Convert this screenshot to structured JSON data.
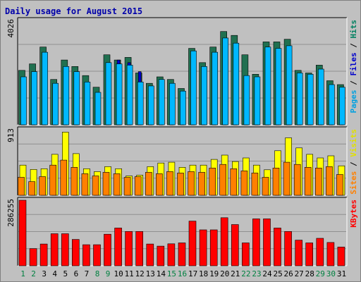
{
  "chart_data": {
    "type": "bar",
    "title": "Daily usage for August 2015",
    "categories": [
      "1",
      "2",
      "3",
      "4",
      "5",
      "6",
      "7",
      "8",
      "9",
      "10",
      "11",
      "12",
      "13",
      "14",
      "15",
      "16",
      "17",
      "18",
      "19",
      "20",
      "21",
      "22",
      "23",
      "24",
      "25",
      "26",
      "27",
      "28",
      "29",
      "30",
      "31"
    ],
    "weekend_days": [
      "1",
      "2",
      "8",
      "9",
      "15",
      "16",
      "22",
      "23",
      "29",
      "30"
    ],
    "panels": [
      {
        "name": "hits-files-pages",
        "max_label": "4026",
        "ymax": 4026,
        "side_labels": [
          {
            "text": "Pages",
            "color": "#00a0e0"
          },
          {
            "text": " / ",
            "color": "#000000"
          },
          {
            "text": "Files",
            "color": "#0000cc"
          },
          {
            "text": " / ",
            "color": "#000000"
          },
          {
            "text": "Hits",
            "color": "#008060"
          }
        ],
        "series": [
          {
            "name": "Hits",
            "color": "#207050",
            "values": [
              2100,
              2350,
              3000,
              1750,
              2500,
              2250,
              1900,
              1450,
              2700,
              2500,
              2600,
              2000,
              1600,
              1850,
              1750,
              1400,
              2950,
              2400,
              3000,
              3600,
              3450,
              2700,
              1950,
              3200,
              3200,
              3300,
              2100,
              2000,
              2300,
              1700,
              1550
            ]
          },
          {
            "name": "Files",
            "color": "#0000cc",
            "values": [
              1500,
              1650,
              1800,
              1300,
              1600,
              1500,
              1250,
              1000,
              1750,
              2500,
              2400,
              2050,
              1150,
              1300,
              1300,
              1050,
              2250,
              1750,
              2250,
              2800,
              2600,
              1750,
              1450,
              2400,
              2350,
              2650,
              1550,
              1500,
              1600,
              1250,
              1200
            ]
          },
          {
            "name": "Pages",
            "color": "#00b8ff",
            "values": [
              1850,
              2050,
              2800,
              1600,
              2250,
              2050,
              1650,
              1250,
              2400,
              2350,
              2300,
              1650,
              1500,
              1750,
              1600,
              1300,
              2850,
              2250,
              2800,
              3350,
              3150,
              1900,
              1850,
              3000,
              2950,
              3050,
              2000,
              1950,
              2150,
              1550,
              1450
            ]
          }
        ]
      },
      {
        "name": "visits-sites",
        "max_label": "913",
        "ymax": 913,
        "side_labels": [
          {
            "text": "Sites",
            "color": "#ff8000"
          },
          {
            "text": " / ",
            "color": "#000000"
          },
          {
            "text": "Visits",
            "color": "#e0e000"
          }
        ],
        "series": [
          {
            "name": "Visits",
            "color": "#ffff00",
            "values": [
              420,
              360,
              370,
              570,
              880,
              580,
              370,
              330,
              400,
              370,
              270,
              280,
              400,
              450,
              460,
              390,
              420,
              420,
              500,
              560,
              470,
              520,
              420,
              355,
              620,
              800,
              660,
              570,
              520,
              550,
              410
            ]
          },
          {
            "name": "Sites",
            "color": "#ff8000",
            "values": [
              250,
              190,
              260,
              420,
              490,
              390,
              300,
              270,
              320,
              300,
              250,
              260,
              320,
              300,
              330,
              310,
              330,
              320,
              380,
              430,
              370,
              340,
              310,
              250,
              380,
              460,
              430,
              390,
              380,
              400,
              290
            ]
          }
        ]
      },
      {
        "name": "kbytes",
        "max_label": "286255",
        "ymax": 286255,
        "side_labels": [
          {
            "text": "KBytes",
            "color": "#ff0000"
          }
        ],
        "series": [
          {
            "name": "KBytes",
            "color": "#ff0000",
            "values": [
              286255,
              75000,
              95000,
              140000,
              140000,
              115000,
              92000,
              92000,
              138000,
              165000,
              150000,
              150000,
              95000,
              86000,
              96000,
              100000,
              195000,
              157000,
              157000,
              210000,
              180000,
              100000,
              205000,
              205000,
              165000,
              150000,
              112000,
              100000,
              120000,
              102000,
              82000
            ]
          }
        ]
      }
    ]
  }
}
